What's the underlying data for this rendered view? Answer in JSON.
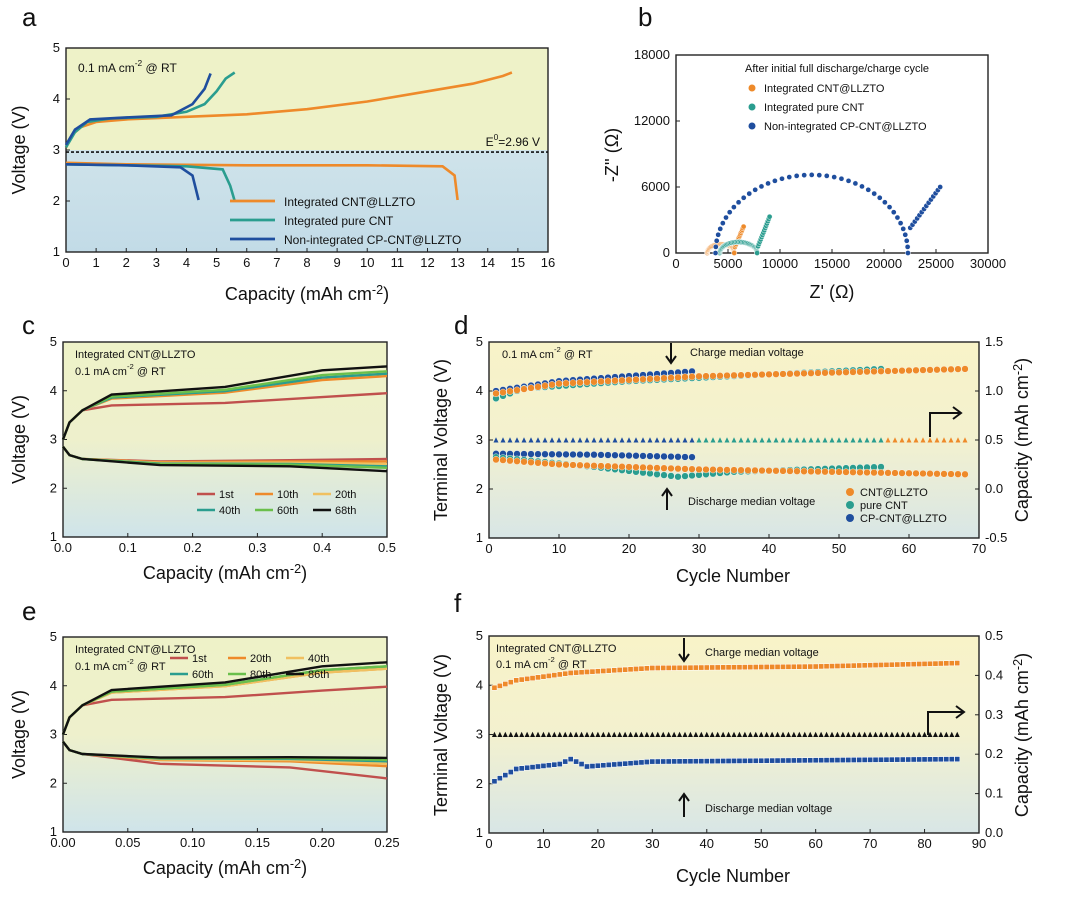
{
  "colors": {
    "orange": "#ee8a2a",
    "teal": "#2a9d8f",
    "blue": "#1f4e9e",
    "red": "#c0504d",
    "light_orange": "#f0c060",
    "green": "#6abf4b",
    "black": "#111111"
  },
  "chart_data": [
    {
      "panel": "a",
      "type": "line",
      "xlabel": "Capacity (mAh cm",
      "xlabel_sup": "-2",
      "xlabel_end": ")",
      "ylabel": "Voltage (V)",
      "xlim": [
        0,
        16
      ],
      "ylim": [
        1,
        5
      ],
      "xticks": [
        "0",
        "1",
        "2",
        "3",
        "4",
        "5",
        "6",
        "7",
        "8",
        "9",
        "10",
        "11",
        "12",
        "13",
        "14",
        "15",
        "16"
      ],
      "yticks": [
        "1",
        "2",
        "3",
        "4",
        "5"
      ],
      "condition": "0.1 mA cm",
      "condition_sup": "-2",
      "condition_end": " @ RT",
      "reference_line": {
        "y": 2.96,
        "label": "E",
        "label_sup": "0",
        "label_end": "=2.96 V"
      },
      "legend": [
        "Integrated CNT@LLZTO",
        "Integrated pure CNT",
        "Non-integrated CP-CNT@LLZTO"
      ],
      "series": [
        {
          "name": "Integrated CNT@LLZTO",
          "color": "orange",
          "charge": [
            [
              0,
              3.05
            ],
            [
              0.2,
              3.3
            ],
            [
              0.5,
              3.45
            ],
            [
              1,
              3.55
            ],
            [
              2,
              3.6
            ],
            [
              4,
              3.65
            ],
            [
              6,
              3.7
            ],
            [
              8,
              3.8
            ],
            [
              10,
              3.95
            ],
            [
              12,
              4.15
            ],
            [
              13.5,
              4.3
            ],
            [
              14.5,
              4.45
            ],
            [
              14.8,
              4.52
            ]
          ],
          "discharge": [
            [
              0,
              2.75
            ],
            [
              2,
              2.72
            ],
            [
              6,
              2.7
            ],
            [
              10,
              2.7
            ],
            [
              12.5,
              2.68
            ],
            [
              12.9,
              2.5
            ],
            [
              13.0,
              2.02
            ]
          ]
        },
        {
          "name": "Integrated pure CNT",
          "color": "teal",
          "charge": [
            [
              0,
              3.05
            ],
            [
              0.3,
              3.35
            ],
            [
              0.7,
              3.55
            ],
            [
              1.5,
              3.62
            ],
            [
              3,
              3.65
            ],
            [
              4,
              3.75
            ],
            [
              4.6,
              3.9
            ],
            [
              5.0,
              4.15
            ],
            [
              5.3,
              4.4
            ],
            [
              5.6,
              4.52
            ]
          ],
          "discharge": [
            [
              0,
              2.72
            ],
            [
              2,
              2.7
            ],
            [
              4,
              2.68
            ],
            [
              5.2,
              2.62
            ],
            [
              5.45,
              2.3
            ],
            [
              5.6,
              2.0
            ]
          ]
        },
        {
          "name": "Non-integrated CP-CNT@LLZTO",
          "color": "blue",
          "charge": [
            [
              0,
              3.1
            ],
            [
              0.3,
              3.4
            ],
            [
              0.8,
              3.6
            ],
            [
              2,
              3.64
            ],
            [
              3.5,
              3.68
            ],
            [
              4.2,
              3.9
            ],
            [
              4.6,
              4.2
            ],
            [
              4.8,
              4.5
            ]
          ],
          "discharge": [
            [
              0,
              2.72
            ],
            [
              2,
              2.7
            ],
            [
              3.8,
              2.66
            ],
            [
              4.2,
              2.5
            ],
            [
              4.4,
              2.02
            ]
          ]
        }
      ]
    },
    {
      "panel": "b",
      "type": "scatter",
      "xlabel": "Z' (Ω)",
      "ylabel": "-Z'' (Ω)",
      "xlim": [
        0,
        30000
      ],
      "ylim": [
        0,
        18000
      ],
      "xticks": [
        "0",
        "5000",
        "10000",
        "15000",
        "20000",
        "25000",
        "30000"
      ],
      "yticks": [
        "0",
        "6000",
        "12000",
        "18000"
      ],
      "title": "After initial full discharge/charge cycle",
      "legend": [
        "Integrated CNT@LLZTO",
        "Integrated pure CNT",
        "Non-integrated CP-CNT@LLZTO"
      ],
      "series": [
        {
          "name": "Integrated CNT@LLZTO",
          "color": "orange",
          "arc": {
            "start": 3000,
            "end": 5600,
            "height": 800
          },
          "tail": [
            [
              5600,
              400
            ],
            [
              6500,
              2400
            ]
          ]
        },
        {
          "name": "Integrated pure CNT",
          "color": "teal",
          "arc": {
            "start": 4200,
            "end": 7800,
            "height": 1000
          },
          "tail": [
            [
              7800,
              400
            ],
            [
              9000,
              3300
            ]
          ]
        },
        {
          "name": "Non-integrated CP-CNT@LLZTO",
          "color": "blue",
          "arc": {
            "start": 3800,
            "end": 22300,
            "height": 7100
          },
          "tail": [
            [
              22300,
              2000
            ],
            [
              25400,
              6000
            ]
          ]
        }
      ]
    },
    {
      "panel": "c",
      "type": "line",
      "xlabel": "Capacity (mAh cm",
      "xlabel_sup": "-2",
      "xlabel_end": ")",
      "ylabel": "Voltage (V)",
      "xlim": [
        0,
        0.5
      ],
      "ylim": [
        1,
        5
      ],
      "xticks": [
        "0.0",
        "0.1",
        "0.2",
        "0.3",
        "0.4",
        "0.5"
      ],
      "yticks": [
        "1",
        "2",
        "3",
        "4",
        "5"
      ],
      "annotation_1": "Integrated CNT@LLZTO",
      "annotation_2": "0.1 mA cm",
      "annotation_2_sup": "-2",
      "annotation_2_end": " @ RT",
      "legend": [
        "1st",
        "10th",
        "20th",
        "40th",
        "60th",
        "68th"
      ],
      "series": [
        {
          "name": "1st",
          "color": "red",
          "charge_end": 3.95,
          "discharge_end": 2.6
        },
        {
          "name": "10th",
          "color": "orange",
          "charge_end": 4.3,
          "discharge_end": 2.55
        },
        {
          "name": "20th",
          "color": "light_orange",
          "charge_end": 4.35,
          "discharge_end": 2.5
        },
        {
          "name": "40th",
          "color": "teal",
          "charge_end": 4.35,
          "discharge_end": 2.45
        },
        {
          "name": "60th",
          "color": "green",
          "charge_end": 4.4,
          "discharge_end": 2.42
        },
        {
          "name": "68th",
          "color": "black",
          "charge_end": 4.5,
          "discharge_end": 2.35
        }
      ]
    },
    {
      "panel": "d",
      "type": "scatter",
      "xlabel": "Cycle Number",
      "ylabel": "Terminal Voltage (V)",
      "ylabel_right": "Capacity (mAh cm",
      "ylabel_right_sup": "-2",
      "ylabel_right_end": ")",
      "xlim": [
        0,
        70
      ],
      "ylim": [
        1,
        5
      ],
      "ylim_right": [
        -0.5,
        1.5
      ],
      "xticks": [
        "0",
        "10",
        "20",
        "30",
        "40",
        "50",
        "60",
        "70"
      ],
      "yticks": [
        "1",
        "2",
        "3",
        "4",
        "5"
      ],
      "yticks_right": [
        "-0.5",
        "0.0",
        "0.5",
        "1.0",
        "1.5"
      ],
      "condition": "0.1 mA cm",
      "condition_sup": "-2",
      "condition_end": " @ RT",
      "charge_annotation": "Charge median voltage",
      "discharge_annotation": "Discharge median voltage",
      "capacity_value": 0.5,
      "legend": [
        "CNT@LLZTO",
        "pure CNT",
        "CP-CNT@LLZTO"
      ],
      "series": [
        {
          "name": "CNT@LLZTO",
          "color": "orange",
          "cycles": 68,
          "charge": [
            [
              1,
              3.95
            ],
            [
              10,
              4.15
            ],
            [
              30,
              4.3
            ],
            [
              68,
              4.45
            ]
          ],
          "discharge": [
            [
              1,
              2.6
            ],
            [
              10,
              2.5
            ],
            [
              30,
              2.4
            ],
            [
              68,
              2.3
            ]
          ]
        },
        {
          "name": "pure CNT",
          "color": "teal",
          "cycles": 56,
          "charge": [
            [
              1,
              3.85
            ],
            [
              5,
              4.05
            ],
            [
              20,
              4.2
            ],
            [
              56,
              4.45
            ]
          ],
          "discharge": [
            [
              1,
              2.65
            ],
            [
              15,
              2.45
            ],
            [
              27,
              2.25
            ],
            [
              35,
              2.35
            ],
            [
              56,
              2.45
            ]
          ]
        },
        {
          "name": "CP-CNT@LLZTO",
          "color": "blue",
          "cycles": 29,
          "charge": [
            [
              1,
              4.0
            ],
            [
              10,
              4.2
            ],
            [
              29,
              4.4
            ]
          ],
          "discharge": [
            [
              1,
              2.72
            ],
            [
              15,
              2.7
            ],
            [
              29,
              2.65
            ]
          ]
        }
      ]
    },
    {
      "panel": "e",
      "type": "line",
      "xlabel": "Capacity (mAh cm",
      "xlabel_sup": "-2",
      "xlabel_end": ")",
      "ylabel": "Voltage (V)",
      "xlim": [
        0,
        0.25
      ],
      "ylim": [
        1,
        5
      ],
      "xticks": [
        "0.00",
        "0.05",
        "0.10",
        "0.15",
        "0.20",
        "0.25"
      ],
      "yticks": [
        "1",
        "2",
        "3",
        "4",
        "5"
      ],
      "annotation_1": "Integrated CNT@LLZTO",
      "annotation_2": "0.1 mA cm",
      "annotation_2_sup": "-2",
      "annotation_2_end": " @ RT",
      "legend": [
        "1st",
        "20th",
        "40th",
        "60th",
        "80th",
        "86th"
      ],
      "series": [
        {
          "name": "1st",
          "color": "red",
          "charge_end": 3.98,
          "discharge_end": 2.1
        },
        {
          "name": "20th",
          "color": "orange",
          "charge_end": 4.35,
          "discharge_end": 2.35
        },
        {
          "name": "40th",
          "color": "light_orange",
          "charge_end": 4.35,
          "discharge_end": 2.4
        },
        {
          "name": "60th",
          "color": "teal",
          "charge_end": 4.4,
          "discharge_end": 2.45
        },
        {
          "name": "80th",
          "color": "green",
          "charge_end": 4.4,
          "discharge_end": 2.48
        },
        {
          "name": "86th",
          "color": "black",
          "charge_end": 4.48,
          "discharge_end": 2.52
        }
      ]
    },
    {
      "panel": "f",
      "type": "scatter",
      "xlabel": "Cycle Number",
      "ylabel": "Terminal Voltage (V)",
      "ylabel_right": "Capacity (mAh cm",
      "ylabel_right_sup": "-2",
      "ylabel_right_end": ")",
      "xlim": [
        0,
        90
      ],
      "ylim": [
        1,
        5
      ],
      "ylim_right": [
        0.0,
        0.5
      ],
      "xticks": [
        "0",
        "10",
        "20",
        "30",
        "40",
        "50",
        "60",
        "70",
        "80",
        "90"
      ],
      "yticks": [
        "1",
        "2",
        "3",
        "4",
        "5"
      ],
      "yticks_right": [
        "0.0",
        "0.1",
        "0.2",
        "0.3",
        "0.4",
        "0.5"
      ],
      "annotation_1": "Integrated CNT@LLZTO",
      "annotation_2": "0.1 mA cm",
      "annotation_2_sup": "-2",
      "annotation_2_end": " @ RT",
      "charge_annotation": "Charge median voltage",
      "discharge_annotation": "Discharge median voltage",
      "capacity_value": 0.25,
      "cycles": 86,
      "charge": [
        [
          1,
          3.95
        ],
        [
          5,
          4.1
        ],
        [
          15,
          4.25
        ],
        [
          30,
          4.35
        ],
        [
          60,
          4.38
        ],
        [
          86,
          4.45
        ]
      ],
      "discharge": [
        [
          1,
          2.05
        ],
        [
          5,
          2.3
        ],
        [
          13,
          2.4
        ],
        [
          15,
          2.5
        ],
        [
          18,
          2.35
        ],
        [
          30,
          2.45
        ],
        [
          86,
          2.5
        ]
      ]
    }
  ]
}
